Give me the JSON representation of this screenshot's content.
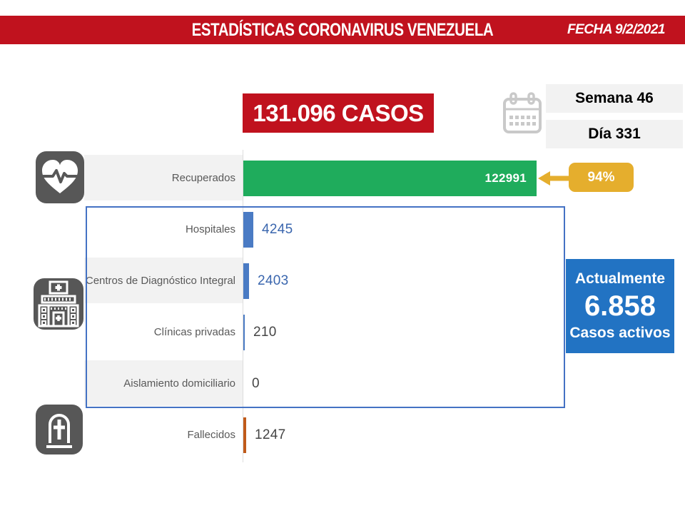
{
  "header": {
    "title": "ESTADÍSTICAS CORONAVIRUS VENEZUELA",
    "date": "FECHA 9/2/2021"
  },
  "summary": {
    "total_cases": "131.096 CASOS",
    "week": "Semana 46",
    "day": "Día 331"
  },
  "recovered_annotation": {
    "percent": "94%"
  },
  "active_cases_box": {
    "heading": "Actualmente",
    "value": "6.858",
    "caption": "Casos activos"
  },
  "chart_data": {
    "type": "bar",
    "orientation": "horizontal",
    "title": "131.096 CASOS",
    "categories": [
      "Recuperados",
      "Hospitales",
      "Centros de Diagnóstico Integral",
      "Clínicas privadas",
      "Aislamiento domiciliario",
      "Fallecidos"
    ],
    "values": [
      122991,
      4245,
      2403,
      210,
      0,
      1247
    ],
    "value_labels": [
      "122991",
      "4245",
      "2403",
      "210",
      "0",
      "1247"
    ],
    "bar_colors": [
      "#1FAC5C",
      "#4A7BC4",
      "#4A7BC4",
      "#4A7BC4",
      "#4A7BC4",
      "#C05A1A"
    ],
    "value_text_colors": [
      "#FFFFFF",
      "#3A66AE",
      "#3A66AE",
      "#454545",
      "#454545",
      "#454545"
    ],
    "row_shading": [
      "#F2F2F2",
      "#FFFFFF",
      "#F2F2F2",
      "#FFFFFF",
      "#F2F2F2",
      "#FFFFFF"
    ],
    "row_icons": [
      "heart-pulse-icon",
      "",
      "hospital-icon",
      "",
      "",
      "tombstone-icon"
    ],
    "xlim": [
      0,
      123000
    ],
    "gridlines": false,
    "legend": false,
    "annotations": [
      {
        "target": "Recuperados",
        "text": "94%"
      }
    ]
  },
  "icons": {
    "calendar": "calendar-icon",
    "heart": "heart-pulse-icon",
    "hospital": "hospital-icon",
    "tombstone": "tombstone-icon",
    "arrow": "arrow-left-icon"
  },
  "colors": {
    "header_red": "#C0121E",
    "recovered_green": "#1FAC5C",
    "bar_blue": "#4A7BC4",
    "deaths_orange": "#C05A1A",
    "badge_gold": "#E5AE2D",
    "active_blue": "#2273C3",
    "outline_blue": "#4472C4",
    "icon_gray": "#575757",
    "shade_gray": "#F2F2F2"
  }
}
